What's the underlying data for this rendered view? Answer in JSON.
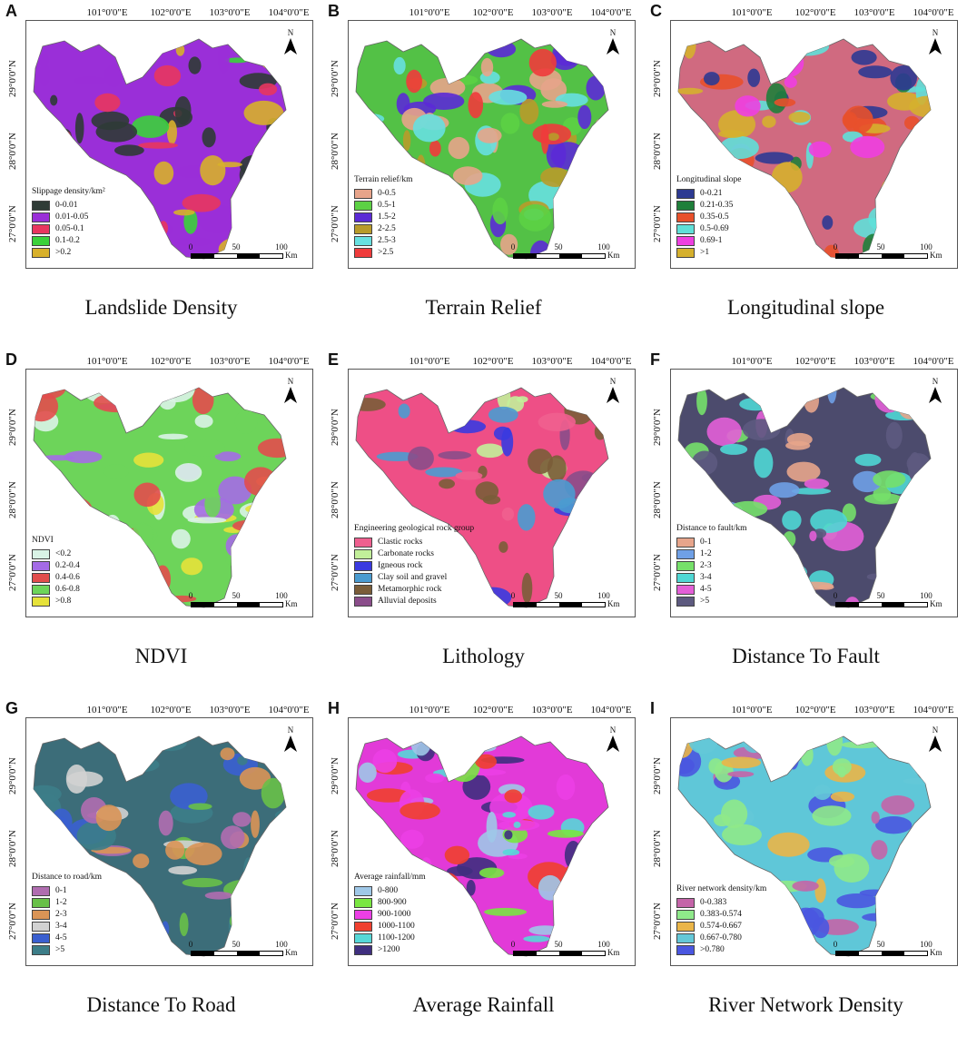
{
  "panels": [
    {
      "letter": "A",
      "caption": "Landslide Density",
      "legend_title": "Slippage density/km²",
      "base": "#9a2fd8",
      "colors": [
        "#2f3b36",
        "#9a2fd8",
        "#e8365f",
        "#3bd13b",
        "#d7b02b"
      ],
      "items": [
        "0-0.01",
        "0.01-0.05",
        "0.05-0.1",
        "0.1-0.2",
        ">0.2"
      ]
    },
    {
      "letter": "B",
      "caption": "Terrain Relief",
      "legend_title": "Terrain relief/km",
      "base": "#53c146",
      "colors": [
        "#e7a48a",
        "#5cd144",
        "#5b2ad6",
        "#b89b2a",
        "#67e0e0",
        "#ef3b3b"
      ],
      "items": [
        "0-0.5",
        "0.5-1",
        "1.5-2",
        "2-2.5",
        "2.5-3",
        ">2.5"
      ]
    },
    {
      "letter": "C",
      "caption": "Longitudinal slope",
      "legend_title": "Longitudinal slope",
      "base": "#d06a80",
      "colors": [
        "#2d3a92",
        "#1f7f3a",
        "#e8502b",
        "#5fe0d8",
        "#ee3fe0",
        "#d5b02d"
      ],
      "items": [
        "0-0.21",
        "0.21-0.35",
        "0.35-0.5",
        "0.5-0.69",
        "0.69-1",
        ">1"
      ]
    },
    {
      "letter": "D",
      "caption": "NDVI",
      "legend_title": "NDVI",
      "base": "#6dd45a",
      "colors": [
        "#d9f3e6",
        "#a46be6",
        "#e24d4d",
        "#6dd45a",
        "#e6e23a"
      ],
      "items": [
        "<0.2",
        "0.2-0.4",
        "0.4-0.6",
        "0.6-0.8",
        ">0.8"
      ]
    },
    {
      "letter": "E",
      "caption": "Lithology",
      "legend_title": "Engineering geological rock group",
      "base": "#ee4f86",
      "colors": [
        "#ef5f8f",
        "#c2ef9a",
        "#3a3ae0",
        "#4a9bd0",
        "#7a5d38",
        "#8a4d8a"
      ],
      "items": [
        "Clastic rocks",
        "Carbonate rocks",
        "Igneous rock",
        "Clay soil and gravel",
        "Metamorphic rock",
        "Alluvial deposits"
      ]
    },
    {
      "letter": "F",
      "caption": "Distance To Fault",
      "legend_title": "Distance to fault/km",
      "base": "#4c4b6d",
      "colors": [
        "#e7a58b",
        "#6fa0e6",
        "#76e06a",
        "#4fd7d4",
        "#e35fd7",
        "#5d5a7f"
      ],
      "items": [
        "0-1",
        "1-2",
        "2-3",
        "3-4",
        "4-5",
        ">5"
      ]
    },
    {
      "letter": "G",
      "caption": "Distance To Road",
      "legend_title": "Distance to road/km",
      "base": "#3c6d79",
      "colors": [
        "#b06db0",
        "#68c048",
        "#d99456",
        "#d2d2d2",
        "#3a5fd0",
        "#3c7d88"
      ],
      "items": [
        "0-1",
        "1-2",
        "2-3",
        "3-4",
        "4-5",
        ">5"
      ]
    },
    {
      "letter": "H",
      "caption": "Average Rainfall",
      "legend_title": "Average rainfall/mm",
      "base": "#e23ad8",
      "colors": [
        "#9fc8e8",
        "#79e641",
        "#ec3fe6",
        "#f0402f",
        "#56d8d8",
        "#3f2f7f"
      ],
      "items": [
        "0-800",
        "800-900",
        "900-1000",
        "1000-1100",
        "1100-1200",
        ">1200"
      ]
    },
    {
      "letter": "I",
      "caption": "River Network Density",
      "legend_title": "River network density/km",
      "base": "#5fc7d8",
      "colors": [
        "#c464a8",
        "#8fe98a",
        "#eab548",
        "#64c8d8",
        "#4a56e0"
      ],
      "items": [
        "0-0.383",
        "0.383-0.574",
        "0.574-0.667",
        "0.667-0.780",
        ">0.780"
      ]
    }
  ],
  "lon_labels": [
    "101°0'0\"E",
    "102°0'0\"E",
    "103°0'0\"E",
    "104°0'0\"E"
  ],
  "lat_labels": [
    "29°0'0\"N",
    "28°0'0\"N",
    "27°0'0\"N"
  ],
  "north_label": "N",
  "scale": {
    "ticks": [
      "0",
      "50",
      "100"
    ],
    "unit": "Km"
  }
}
